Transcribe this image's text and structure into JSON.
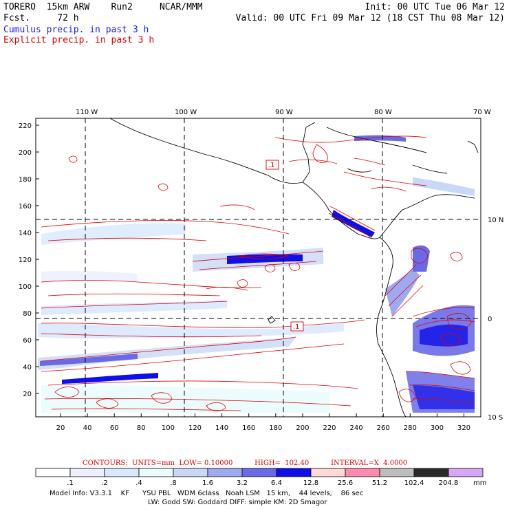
{
  "header": {
    "model_line": "TORERO  15km ARW    Run2     NCAR/MMM",
    "fcst_line": "Fcst.     72 h",
    "init_line": "Init: 00 UTC Tue 06 Mar 12",
    "valid_line": "Valid: 00 UTC Fri 09 Mar 12 (18 CST Thu 08 Mar 12)",
    "cumulus_label": "Cumulus precip. in past 3 h",
    "explicit_label": "Explicit precip. in past 3 h"
  },
  "axes": {
    "top_lon_labels": [
      "110 W",
      "100 W",
      "90 W",
      "80 W",
      "70 W"
    ],
    "right_lat_labels": [
      "10 N",
      "0",
      "10 S"
    ],
    "y_grid_labels": [
      "220",
      "200",
      "180",
      "160",
      "140",
      "120",
      "100",
      "80",
      "60",
      "40",
      "20"
    ],
    "x_grid_labels": [
      "20",
      "40",
      "60",
      "80",
      "100",
      "120",
      "140",
      "160",
      "180",
      "200",
      "220",
      "240",
      "260",
      "280",
      "300",
      "320"
    ],
    "box_labels": [
      ".1",
      ".1"
    ]
  },
  "contours": {
    "text": "CONTOURS:  UNITS=mm  LOW= 0.10000          HIGH=  102.40          INTERVAL=X  4.0000"
  },
  "colorbar": {
    "unit": "mm",
    "thresholds": [
      ".1",
      ".2",
      ".4",
      ".8",
      "1.6",
      "3.2",
      "6.4",
      "12.8",
      "25.6",
      "51.2",
      "102.4",
      "204.8"
    ],
    "colors": [
      "#ffffff",
      "#eef0ff",
      "#d8e8ff",
      "#eafcfc",
      "#c9d8f6",
      "#9fa9ef",
      "#6a6ae8",
      "#0f0fe8",
      "#ffd8d8",
      "#ff8ab0",
      "#bdbdbd",
      "#2a2a2a",
      "#d9a6f5"
    ]
  },
  "footer": {
    "line1": "Model Info: V3.3.1    KF      YSU PBL   WDM 6class   Noah LSM   15 km,    44 levels,    86 sec",
    "line2": "LW: Godd SW: Goddard DIFF: simple KM: 2D Smagor"
  }
}
